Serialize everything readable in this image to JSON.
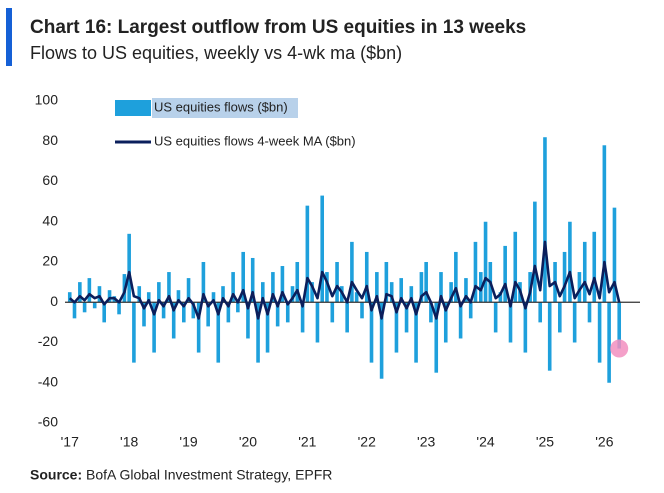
{
  "chart_data": {
    "type": "bar_line",
    "title": "Chart 16: Largest outflow from US equities in 13 weeks",
    "subtitle": "Flows to US equities, weekly vs 4-wk ma ($bn)",
    "source_label": "Source:",
    "source": "BofA Global Investment Strategy, EPFR",
    "x": [
      2017,
      2017.08,
      2017.17,
      2017.25,
      2017.33,
      2017.42,
      2017.5,
      2017.58,
      2017.67,
      2017.75,
      2017.83,
      2017.92,
      2018,
      2018.08,
      2018.17,
      2018.25,
      2018.33,
      2018.42,
      2018.5,
      2018.58,
      2018.67,
      2018.75,
      2018.83,
      2018.92,
      2019,
      2019.08,
      2019.17,
      2019.25,
      2019.33,
      2019.42,
      2019.5,
      2019.58,
      2019.67,
      2019.75,
      2019.83,
      2019.92,
      2020,
      2020.08,
      2020.17,
      2020.25,
      2020.33,
      2020.42,
      2020.5,
      2020.58,
      2020.67,
      2020.75,
      2020.83,
      2020.92,
      2021,
      2021.08,
      2021.17,
      2021.25,
      2021.33,
      2021.42,
      2021.5,
      2021.58,
      2021.67,
      2021.75,
      2021.83,
      2021.92,
      2022,
      2022.08,
      2022.17,
      2022.25,
      2022.33,
      2022.42,
      2022.5,
      2022.58,
      2022.67,
      2022.75,
      2022.83,
      2022.92,
      2023,
      2023.08,
      2023.17,
      2023.25,
      2023.33,
      2023.42,
      2023.5,
      2023.58,
      2023.67,
      2023.75,
      2023.83,
      2023.92,
      2024,
      2024.08,
      2024.17,
      2024.25,
      2024.33,
      2024.42,
      2024.5,
      2024.58,
      2024.67,
      2024.75,
      2024.83,
      2024.92,
      2025,
      2025.08,
      2025.17,
      2025.25,
      2025.33,
      2025.42,
      2025.5,
      2025.58,
      2025.67,
      2025.75,
      2025.83,
      2025.92,
      2026,
      2026.08,
      2026.17,
      2026.25
    ],
    "series": [
      {
        "name": "US equities flows ($bn)",
        "kind": "bar",
        "color": "#1ea0dc",
        "values": [
          5,
          -8,
          10,
          -5,
          12,
          -3,
          8,
          -10,
          6,
          3,
          -6,
          14,
          34,
          -30,
          8,
          -12,
          5,
          -25,
          10,
          -8,
          15,
          -18,
          6,
          -10,
          12,
          -8,
          -25,
          20,
          -12,
          5,
          -30,
          8,
          -10,
          15,
          -5,
          25,
          -18,
          22,
          -30,
          10,
          -25,
          15,
          -12,
          18,
          -10,
          8,
          20,
          -15,
          48,
          10,
          -20,
          53,
          15,
          -10,
          20,
          8,
          -15,
          30,
          5,
          -8,
          25,
          -30,
          15,
          -38,
          20,
          10,
          -25,
          12,
          -15,
          8,
          -30,
          15,
          20,
          -10,
          -35,
          15,
          -20,
          10,
          25,
          -18,
          12,
          -8,
          30,
          15,
          40,
          20,
          -15,
          5,
          28,
          -20,
          35,
          10,
          -25,
          15,
          50,
          -10,
          82,
          -34,
          20,
          -15,
          25,
          40,
          -20,
          15,
          30,
          -10,
          35,
          -30,
          78,
          -40,
          47,
          -23
        ]
      },
      {
        "name": "US equities flows 4-week MA ($bn)",
        "kind": "line",
        "color": "#0b1f5c",
        "values": [
          2,
          0,
          3,
          1,
          4,
          2,
          3,
          -1,
          2,
          2,
          0,
          5,
          15,
          3,
          2,
          -3,
          1,
          -6,
          1,
          -2,
          3,
          -4,
          1,
          -2,
          2,
          -1,
          -8,
          4,
          -2,
          1,
          -6,
          2,
          -2,
          4,
          0,
          6,
          -3,
          5,
          -8,
          2,
          -6,
          4,
          -2,
          5,
          -1,
          2,
          6,
          -2,
          12,
          8,
          2,
          15,
          10,
          3,
          8,
          5,
          0,
          10,
          6,
          2,
          8,
          -4,
          3,
          -8,
          4,
          3,
          -5,
          2,
          -3,
          2,
          -6,
          3,
          5,
          0,
          -8,
          3,
          -4,
          2,
          7,
          -2,
          3,
          0,
          8,
          6,
          12,
          10,
          2,
          4,
          9,
          -2,
          10,
          6,
          -3,
          5,
          18,
          6,
          30,
          8,
          10,
          3,
          8,
          15,
          2,
          6,
          10,
          4,
          12,
          2,
          20,
          5,
          10,
          0
        ]
      }
    ],
    "highlight_last": true,
    "highlight_color": "#f28fc0",
    "xlim": [
      2016.92,
      2026.6
    ],
    "xticks": [
      {
        "value": 2017,
        "label": "'17"
      },
      {
        "value": 2018,
        "label": "'18"
      },
      {
        "value": 2019,
        "label": "'19"
      },
      {
        "value": 2020,
        "label": "'20"
      },
      {
        "value": 2021,
        "label": "'21"
      },
      {
        "value": 2022,
        "label": "'22"
      },
      {
        "value": 2023,
        "label": "'23"
      },
      {
        "value": 2024,
        "label": "'24"
      },
      {
        "value": 2025,
        "label": "'25"
      },
      {
        "value": 2026,
        "label": "'26"
      }
    ],
    "ylim": [
      -60,
      100
    ],
    "yticks": [
      -60,
      -40,
      -20,
      0,
      20,
      40,
      60,
      80,
      100
    ]
  }
}
